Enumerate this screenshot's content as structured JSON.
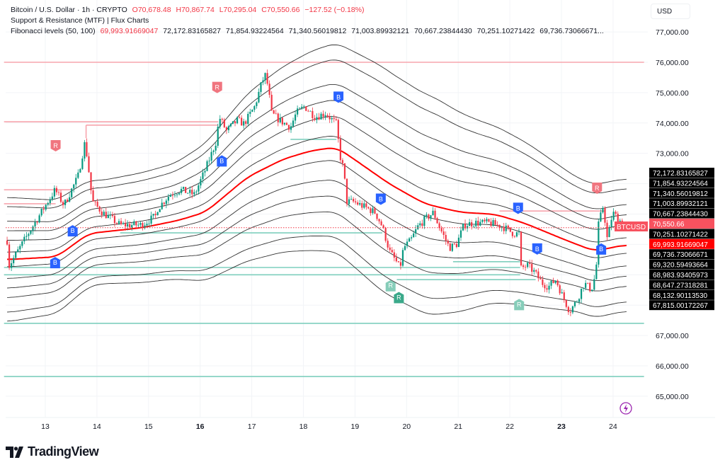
{
  "legend": {
    "symbol": "Bitcoin / U.S. Dollar · 1h · CRYPTO",
    "open": "O70,678.48",
    "high": "H70,867.74",
    "low": "L70,295.04",
    "close": "C70,550.66",
    "change": "−127.52 (−0.18%)",
    "indicator1": "Support & Resistance (MTF) | Flux Charts",
    "indicator2": "Fibonacci levels (50, 100)",
    "fib_values": [
      "69,993.91669047",
      "72,172.83165827",
      "71,854.93224564",
      "71,340.56019812",
      "71,003.89932121",
      "70,667.23844430",
      "70,251.10271422",
      "69,736.73066671..."
    ]
  },
  "currency": "USD",
  "brand": "TradingView",
  "colors": {
    "up": "#089981",
    "down": "#f23645",
    "buy": "#2962ff",
    "resistance": "#f7a5ad",
    "support": "#7fcfbe",
    "basis": "#ff0000",
    "band": "#333333"
  },
  "chart_data": {
    "type": "candlestick",
    "symbol": "BTCUSD",
    "interval": "1h",
    "last_price": "70,550.66",
    "x_ticks": [
      "13",
      "14",
      "15",
      "16",
      "17",
      "18",
      "19",
      "20",
      "21",
      "22",
      "23",
      "24"
    ],
    "bold_x_ticks": [
      "16",
      "23"
    ],
    "y_ticks": [
      "77,000.00",
      "76,000.00",
      "75,000.00",
      "74,000.00",
      "73,000.00",
      "67,000.00",
      "66,000.00",
      "65,000.00"
    ],
    "ylim": [
      64600,
      77600
    ],
    "xlim_days": [
      12.2,
      24.6
    ],
    "close_path": [
      [
        12.26,
        70126
      ],
      [
        12.3,
        69300
      ],
      [
        12.67,
        70360
      ],
      [
        13.19,
        71800
      ],
      [
        13.36,
        71290
      ],
      [
        13.63,
        72220
      ],
      [
        13.77,
        73390
      ],
      [
        13.84,
        72460
      ],
      [
        13.91,
        71410
      ],
      [
        14.11,
        71050
      ],
      [
        14.45,
        70640
      ],
      [
        14.87,
        70640
      ],
      [
        15.14,
        70940
      ],
      [
        15.17,
        71170
      ],
      [
        15.41,
        71640
      ],
      [
        15.62,
        71800
      ],
      [
        15.89,
        71640
      ],
      [
        16.1,
        72460
      ],
      [
        16.31,
        73390
      ],
      [
        16.37,
        74200
      ],
      [
        16.51,
        73740
      ],
      [
        16.72,
        74090
      ],
      [
        16.85,
        73970
      ],
      [
        17.06,
        74550
      ],
      [
        17.2,
        75370
      ],
      [
        17.27,
        75600
      ],
      [
        17.33,
        75020
      ],
      [
        17.38,
        74320
      ],
      [
        17.54,
        74090
      ],
      [
        17.75,
        73860
      ],
      [
        17.86,
        74320
      ],
      [
        18.02,
        74550
      ],
      [
        18.23,
        74200
      ],
      [
        18.43,
        74320
      ],
      [
        18.64,
        73970
      ],
      [
        18.71,
        72920
      ],
      [
        18.78,
        72460
      ],
      [
        18.84,
        71410
      ],
      [
        18.98,
        71400
      ],
      [
        19.26,
        71170
      ],
      [
        19.39,
        71050
      ],
      [
        19.53,
        70590
      ],
      [
        19.67,
        69770
      ],
      [
        19.8,
        69430
      ],
      [
        19.87,
        69200
      ],
      [
        19.94,
        69890
      ],
      [
        20.08,
        70130
      ],
      [
        20.22,
        70590
      ],
      [
        20.35,
        70820
      ],
      [
        20.52,
        71050
      ],
      [
        20.63,
        70590
      ],
      [
        20.83,
        69890
      ],
      [
        20.97,
        70010
      ],
      [
        21.11,
        70640
      ],
      [
        21.31,
        70710
      ],
      [
        21.59,
        70710
      ],
      [
        21.86,
        70590
      ],
      [
        22.07,
        70360
      ],
      [
        22.18,
        70360
      ],
      [
        22.2,
        69200
      ],
      [
        22.34,
        69310
      ],
      [
        22.48,
        69080
      ],
      [
        22.62,
        68730
      ],
      [
        22.75,
        68610
      ],
      [
        22.89,
        68840
      ],
      [
        23.03,
        68260
      ],
      [
        23.16,
        67800
      ],
      [
        23.3,
        68150
      ],
      [
        23.44,
        68730
      ],
      [
        23.58,
        68500
      ],
      [
        23.67,
        69080
      ],
      [
        23.71,
        70590
      ],
      [
        23.81,
        71290
      ],
      [
        23.89,
        70130
      ],
      [
        23.99,
        71050
      ],
      [
        24.12,
        70820
      ],
      [
        24.22,
        70550
      ]
    ],
    "fib_basis_path": [
      [
        12.26,
        69500
      ],
      [
        13.22,
        69590
      ],
      [
        13.84,
        70360
      ],
      [
        14.87,
        70550
      ],
      [
        15.55,
        70780
      ],
      [
        16.1,
        71060
      ],
      [
        16.92,
        72220
      ],
      [
        17.61,
        72810
      ],
      [
        18.16,
        73090
      ],
      [
        18.64,
        73200
      ],
      [
        18.98,
        72810
      ],
      [
        19.67,
        71990
      ],
      [
        20.35,
        71340
      ],
      [
        21.04,
        71060
      ],
      [
        21.72,
        70990
      ],
      [
        22.27,
        70710
      ],
      [
        23.1,
        70130
      ],
      [
        23.64,
        69780
      ],
      [
        24.26,
        69994
      ]
    ],
    "fib_range_path": [
      [
        12.26,
        2050
      ],
      [
        14.1,
        1700
      ],
      [
        15.5,
        1900
      ],
      [
        17,
        2800
      ],
      [
        18.2,
        3300
      ],
      [
        19.5,
        3700
      ],
      [
        20.5,
        3600
      ],
      [
        21.5,
        3000
      ],
      [
        22.5,
        2600
      ],
      [
        23.3,
        2200
      ],
      [
        24.26,
        2179
      ]
    ],
    "fib_ratios": [
      1,
      0.854,
      0.618,
      0.4635,
      0.309,
      0.118
    ],
    "fib_levels": [
      {
        "label": "72,172.83165827",
        "basis": false
      },
      {
        "label": "71,854.93224564",
        "basis": false
      },
      {
        "label": "71,340.56019812",
        "basis": false
      },
      {
        "label": "71,003.89932121",
        "basis": false
      },
      {
        "label": "70,667.23844430",
        "basis": false
      },
      {
        "label": "70,550.66",
        "price": true
      },
      {
        "label": "70,251.10271422",
        "basis": false
      },
      {
        "label": "69,993.91669047",
        "basis": true
      },
      {
        "label": "69,736.73066671",
        "basis": false
      },
      {
        "label": "69,320.59493664",
        "basis": false
      },
      {
        "label": "68,983.93405973",
        "basis": false
      },
      {
        "label": "68,647.27318281",
        "basis": false
      },
      {
        "label": "68,132.90113530",
        "basis": false
      },
      {
        "label": "67,815.00172267",
        "basis": false
      }
    ],
    "levels": [
      {
        "kind": "resistance",
        "price": 76000,
        "from": 12.2,
        "to": 24.6
      },
      {
        "kind": "resistance",
        "price": 74040,
        "from": 12.2,
        "to": 16.35
      },
      {
        "kind": "resistance",
        "price": 73930,
        "from": 13.79,
        "to": 16.35,
        "step_from": 73500
      },
      {
        "kind": "resistance",
        "price": 71800,
        "from": 12.2,
        "to": 13.5
      },
      {
        "kind": "resistance",
        "price": 71340,
        "from": 12.2,
        "to": 13.2
      },
      {
        "kind": "resistance",
        "price": 71100,
        "from": 21.8,
        "to": 23.85
      },
      {
        "kind": "support",
        "price": 73460,
        "from": 17.75,
        "to": 18.64
      },
      {
        "kind": "support",
        "price": 70380,
        "from": 14.45,
        "to": 19.53
      },
      {
        "kind": "support",
        "price": 69430,
        "from": 20.9,
        "to": 22.2
      },
      {
        "kind": "support",
        "price": 69240,
        "from": 12.2,
        "to": 22.2
      },
      {
        "kind": "support",
        "price": 69000,
        "from": 12.2,
        "to": 22.2
      },
      {
        "kind": "support",
        "price": 68840,
        "from": 19.81,
        "to": 22.5
      },
      {
        "kind": "support",
        "price": 67400,
        "from": 12.2,
        "to": 24.6
      },
      {
        "kind": "support",
        "price": 65650,
        "from": 12.2,
        "to": 24.6
      }
    ],
    "signals": [
      {
        "label": "B",
        "kind": "buy",
        "day": 13.19,
        "price": 69400,
        "dir": "up"
      },
      {
        "label": "B",
        "kind": "buy",
        "day": 13.53,
        "price": 70450,
        "dir": "up"
      },
      {
        "label": "B",
        "kind": "buy",
        "day": 16.42,
        "price": 72750,
        "dir": "up"
      },
      {
        "label": "B",
        "kind": "buy",
        "day": 18.68,
        "price": 74850,
        "dir": "down"
      },
      {
        "label": "B",
        "kind": "buy",
        "day": 19.5,
        "price": 71490,
        "dir": "down"
      },
      {
        "label": "B",
        "kind": "buy",
        "day": 22.16,
        "price": 71190,
        "dir": "down"
      },
      {
        "label": "B",
        "kind": "buy",
        "day": 22.53,
        "price": 69850,
        "dir": "down"
      },
      {
        "label": "B",
        "kind": "buy",
        "day": 23.77,
        "price": 69850,
        "dir": "up"
      },
      {
        "label": "R",
        "kind": "resistance",
        "day": 13.2,
        "price": 73250,
        "dir": "down"
      },
      {
        "label": "R",
        "kind": "resistance",
        "day": 16.33,
        "price": 75170,
        "dir": "down"
      },
      {
        "label": "R",
        "kind": "resistance",
        "day": 23.69,
        "price": 71850,
        "dir": "down"
      },
      {
        "label": "R",
        "kind": "support-faded",
        "day": 19.69,
        "price": 68640,
        "dir": "up"
      },
      {
        "label": "R",
        "kind": "support",
        "day": 19.85,
        "price": 68250,
        "dir": "up"
      },
      {
        "label": "R",
        "kind": "support-faded",
        "day": 22.18,
        "price": 68020,
        "dir": "up"
      }
    ]
  }
}
